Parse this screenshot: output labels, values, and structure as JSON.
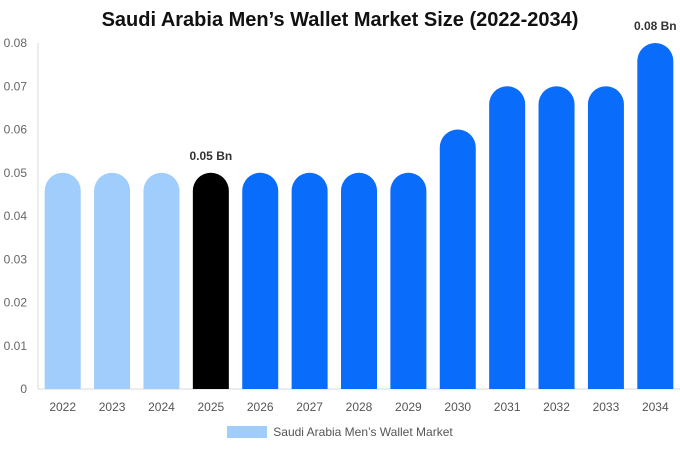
{
  "chart_data": {
    "type": "bar",
    "title": "Saudi Arabia Men’s Wallet Market Size (2022-2034)",
    "categories": [
      "2022",
      "2023",
      "2024",
      "2025",
      "2026",
      "2027",
      "2028",
      "2029",
      "2030",
      "2031",
      "2032",
      "2033",
      "2034"
    ],
    "series": [
      {
        "name": "Saudi Arabia Men’s Wallet Market",
        "values": [
          0.05,
          0.05,
          0.05,
          0.05,
          0.05,
          0.05,
          0.05,
          0.05,
          0.06,
          0.07,
          0.07,
          0.07,
          0.08
        ]
      }
    ],
    "bar_colors": [
      "#a1cdfc",
      "#a1cdfc",
      "#a1cdfc",
      "#000000",
      "#0a6cfb",
      "#0a6cfb",
      "#0a6cfb",
      "#0a6cfb",
      "#0a6cfb",
      "#0a6cfb",
      "#0a6cfb",
      "#0a6cfb",
      "#0a6cfb"
    ],
    "legend_color": "#a1cdfc",
    "data_labels": [
      {
        "category": "2025",
        "text": "0.05 Bn"
      },
      {
        "category": "2034",
        "text": "0.08 Bn"
      }
    ],
    "y_ticks": [
      "0",
      "0.01",
      "0.02",
      "0.03",
      "0.04",
      "0.05",
      "0.06",
      "0.07",
      "0.08"
    ],
    "ylim": [
      0,
      0.08
    ],
    "xlabel": "",
    "ylabel": "",
    "grid": false,
    "legend_position": "bottom"
  }
}
